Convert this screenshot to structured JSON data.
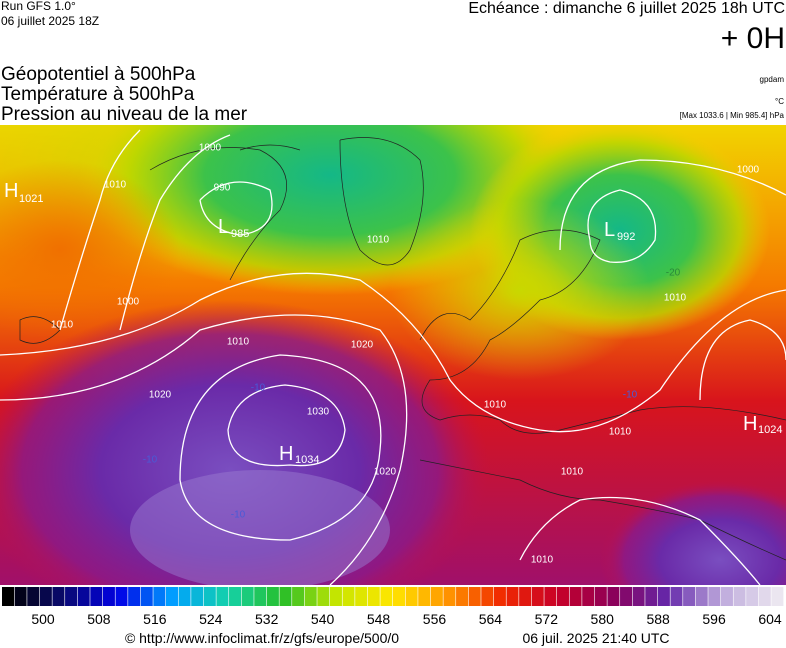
{
  "header": {
    "run": "Run GFS 1.0°",
    "run_date": "06 juillet 2025 18Z",
    "valid": "Echéance : dimanche 6 juillet 2025 18h UTC",
    "lead": "+ 0H",
    "layers": [
      "Géopotentiel à 500hPa",
      "Température à 500hPa",
      "Pression au niveau de la mer"
    ],
    "units": [
      "gpdam",
      "°C",
      "[Max 1033.6 | Min 985.4] hPa"
    ]
  },
  "map": {
    "centers": [
      {
        "letter": "H",
        "value": "1021"
      },
      {
        "letter": "L",
        "value": "985"
      },
      {
        "letter": "L",
        "value": "992"
      },
      {
        "letter": "H",
        "value": "1034"
      },
      {
        "letter": "H",
        "value": "1024"
      }
    ],
    "isobar_labels": [
      "1000",
      "990",
      "1010",
      "1010",
      "1000",
      "1010",
      "1010",
      "1020",
      "1020",
      "1030",
      "1020",
      "1010",
      "1010",
      "1010",
      "1010",
      "1000",
      "1010"
    ],
    "temperature_labels": [
      "-10",
      "-10",
      "-10",
      "-10",
      "-20"
    ]
  },
  "colorbar": {
    "labels": [
      "500",
      "508",
      "516",
      "524",
      "532",
      "540",
      "548",
      "556",
      "564",
      "572",
      "580",
      "588",
      "596",
      "604"
    ]
  },
  "footer": {
    "source": "© http://www.infoclimat.fr/z/gfs/europe/500/0",
    "generated": "06 juil. 2025 21:40 UTC"
  }
}
